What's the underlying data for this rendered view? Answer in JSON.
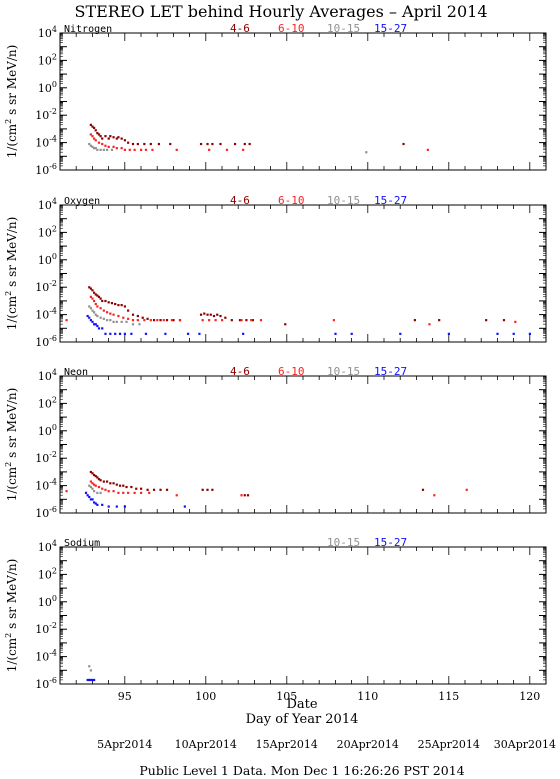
{
  "title": "STEREO LET behind Hourly Averages – April 2014",
  "ylabel_prefix": "1/(cm",
  "ylabel_sup": "2",
  "ylabel_suffix": " s sr MeV/n)",
  "xlabel_top": "Date",
  "xlabel": "Day of Year 2014",
  "xticks": [
    "95",
    "100",
    "105",
    "110",
    "115",
    "120"
  ],
  "date_labels": [
    "5Apr2014",
    "10Apr2014",
    "15Apr2014",
    "20Apr2014",
    "25Apr2014",
    "30Apr2014"
  ],
  "footer": "Public Level 1 Data.  Mon Dec  1 16:26:26 PST 2014",
  "ytick_base": "10",
  "ytick_exps": [
    "4",
    "2",
    "0",
    "-2",
    "-4",
    "-6"
  ],
  "colors": {
    "4-6": "#8b0000",
    "6-10": "#ff2020",
    "10-15": "#909090",
    "15-27": "#1010ff"
  },
  "chart_data": [
    {
      "type": "scatter",
      "name": "Nitrogen",
      "legend": [
        "4-6",
        "6-10",
        "10-15",
        "15-27"
      ],
      "xlim": [
        91,
        121
      ],
      "ylim_log10": [
        -6,
        4
      ],
      "ylog": true,
      "series": [
        {
          "name": "4-6",
          "x": [
            92.9,
            93.0,
            93.1,
            93.2,
            93.3,
            93.4,
            93.5,
            93.6,
            93.8,
            94.0,
            94.1,
            94.3,
            94.5,
            94.6,
            94.8,
            95.0,
            95.2,
            95.5,
            95.8,
            96.2,
            96.6,
            97.1,
            97.8,
            99.7,
            100.1,
            100.4,
            100.9,
            101.8,
            102.4,
            102.7,
            112.2
          ],
          "y": [
            0.002,
            0.0015,
            0.0012,
            0.0008,
            0.0005,
            0.0004,
            0.0003,
            0.0002,
            0.0003,
            0.0002,
            0.0003,
            0.00025,
            0.0002,
            0.00025,
            0.0002,
            0.00015,
            0.0001,
            8e-05,
            8e-05,
            8e-05,
            8e-05,
            8e-05,
            8e-05,
            8e-05,
            8e-05,
            8e-05,
            8e-05,
            8e-05,
            8e-05,
            8e-05,
            8e-05
          ]
        },
        {
          "name": "6-10",
          "x": [
            92.9,
            93.0,
            93.1,
            93.2,
            93.4,
            93.6,
            93.8,
            94.0,
            94.3,
            94.5,
            94.8,
            95.0,
            95.3,
            95.6,
            96.0,
            96.3,
            96.7,
            98.2,
            100.2,
            101.3,
            102.3,
            113.7
          ],
          "y": [
            0.0004,
            0.0003,
            0.0002,
            0.00015,
            0.0001,
            8e-05,
            6e-05,
            5e-05,
            5e-05,
            4e-05,
            4e-05,
            3e-05,
            3e-05,
            3e-05,
            3e-05,
            3e-05,
            3e-05,
            3e-05,
            3e-05,
            3e-05,
            3e-05,
            3e-05
          ]
        },
        {
          "name": "10-15",
          "x": [
            92.8,
            92.9,
            93.0,
            93.1,
            93.2,
            93.3,
            93.5,
            93.7,
            93.9,
            94.2,
            109.9
          ],
          "y": [
            8e-05,
            6e-05,
            5e-05,
            4e-05,
            4e-05,
            3e-05,
            3e-05,
            3e-05,
            3e-05,
            3e-05,
            2e-05
          ]
        },
        {
          "name": "15-27",
          "x": [],
          "y": []
        }
      ]
    },
    {
      "type": "scatter",
      "name": "Oxygen",
      "legend": [
        "4-6",
        "6-10",
        "10-15",
        "15-27"
      ],
      "xlim": [
        91,
        121
      ],
      "ylim_log10": [
        -6,
        4
      ],
      "ylog": true,
      "series": [
        {
          "name": "4-6",
          "x": [
            92.8,
            92.9,
            93.0,
            93.1,
            93.2,
            93.3,
            93.4,
            93.5,
            93.6,
            93.8,
            94.0,
            94.2,
            94.4,
            94.6,
            94.8,
            95.0,
            95.2,
            95.5,
            95.8,
            96.1,
            96.4,
            96.8,
            97.2,
            97.6,
            98.0,
            98.4,
            99.7,
            99.9,
            100.1,
            100.3,
            100.5,
            100.7,
            100.9,
            101.2,
            101.6,
            102.1,
            102.5,
            102.9,
            104.9,
            112.9,
            114.4,
            117.3,
            118.4
          ],
          "y": [
            0.01,
            0.008,
            0.006,
            0.004,
            0.003,
            0.0025,
            0.002,
            0.0015,
            0.001,
            0.001,
            0.0008,
            0.0007,
            0.0006,
            0.0005,
            0.0005,
            0.0004,
            0.0002,
            0.0001,
            8e-05,
            6e-05,
            5e-05,
            4e-05,
            4e-05,
            4e-05,
            4e-05,
            4e-05,
            0.0001,
            0.00012,
            0.0001,
            0.0001,
            8e-05,
            0.0001,
            8e-05,
            6e-05,
            4e-05,
            4e-05,
            4e-05,
            4e-05,
            2e-05,
            4e-05,
            4e-05,
            4e-05,
            4e-05
          ]
        },
        {
          "name": "6-10",
          "x": [
            91.4,
            92.9,
            93.0,
            93.1,
            93.2,
            93.3,
            93.5,
            93.7,
            93.9,
            94.1,
            94.3,
            94.6,
            94.9,
            95.2,
            95.5,
            95.8,
            96.2,
            96.6,
            97.0,
            97.4,
            97.9,
            98.4,
            99.8,
            100.2,
            100.6,
            101.0,
            102.2,
            102.8,
            103.4,
            107.9,
            113.8,
            119.1
          ],
          "y": [
            4e-05,
            0.002,
            0.0015,
            0.001,
            0.0006,
            0.0004,
            0.0003,
            0.0002,
            0.00015,
            0.00012,
            0.0001,
            8e-05,
            6e-05,
            5e-05,
            4e-05,
            4e-05,
            4e-05,
            4e-05,
            4e-05,
            4e-05,
            4e-05,
            4e-05,
            4e-05,
            4e-05,
            4e-05,
            4e-05,
            4e-05,
            4e-05,
            4e-05,
            4e-05,
            2e-05,
            3e-05
          ]
        },
        {
          "name": "10-15",
          "x": [
            92.8,
            92.9,
            93.0,
            93.1,
            93.2,
            93.3,
            93.5,
            93.7,
            93.9,
            94.1,
            94.3,
            94.5,
            94.8,
            95.1,
            95.5,
            95.9
          ],
          "y": [
            0.0004,
            0.0003,
            0.0002,
            0.00015,
            0.0001,
            8e-05,
            6e-05,
            5e-05,
            4e-05,
            4e-05,
            3e-05,
            3e-05,
            3e-05,
            3e-05,
            2e-05,
            2e-05
          ]
        },
        {
          "name": "15-27",
          "x": [
            92.7,
            92.8,
            92.9,
            93.0,
            93.1,
            93.2,
            93.3,
            93.4,
            93.6,
            93.8,
            94.1,
            94.4,
            94.7,
            95.0,
            95.4,
            96.3,
            97.5,
            98.9,
            99.6,
            102.3,
            108.0,
            109.0,
            112.0,
            115.0,
            118.0,
            119.0,
            120.0
          ],
          "y": [
            8e-05,
            6e-05,
            4e-05,
            3e-05,
            2e-05,
            2e-05,
            1.5e-05,
            1e-05,
            1e-05,
            4e-06,
            4e-06,
            4e-06,
            4e-06,
            4e-06,
            4e-06,
            4e-06,
            4e-06,
            4e-06,
            4e-06,
            4e-06,
            4e-06,
            4e-06,
            4e-06,
            4e-06,
            4e-06,
            4e-06,
            4e-06
          ]
        }
      ]
    },
    {
      "type": "scatter",
      "name": "Neon",
      "legend": [
        "4-6",
        "6-10",
        "10-15",
        "15-27"
      ],
      "xlim": [
        91,
        121
      ],
      "ylim_log10": [
        -6,
        4
      ],
      "ylog": true,
      "series": [
        {
          "name": "4-6",
          "x": [
            92.9,
            93.0,
            93.1,
            93.2,
            93.3,
            93.4,
            93.5,
            93.7,
            93.9,
            94.1,
            94.3,
            94.5,
            94.7,
            94.9,
            95.1,
            95.4,
            95.7,
            96.0,
            96.4,
            96.8,
            97.2,
            97.6,
            99.8,
            100.1,
            100.4,
            102.4,
            102.6,
            113.4
          ],
          "y": [
            0.001,
            0.0008,
            0.0006,
            0.0005,
            0.0004,
            0.0003,
            0.00025,
            0.0002,
            0.0002,
            0.00015,
            0.00015,
            0.00012,
            0.0001,
            0.0001,
            8e-05,
            8e-05,
            6e-05,
            6e-05,
            5e-05,
            5e-05,
            5e-05,
            5e-05,
            5e-05,
            5e-05,
            5e-05,
            2e-05,
            2e-05,
            5e-05
          ]
        },
        {
          "name": "6-10",
          "x": [
            91.4,
            92.9,
            93.0,
            93.1,
            93.2,
            93.4,
            93.6,
            93.8,
            94.0,
            94.3,
            94.6,
            94.9,
            95.2,
            95.6,
            96.0,
            96.5,
            98.2,
            102.2,
            114.1,
            116.1
          ],
          "y": [
            4e-05,
            0.0002,
            0.00015,
            0.00012,
            0.0001,
            8e-05,
            6e-05,
            5e-05,
            4e-05,
            4e-05,
            3e-05,
            3e-05,
            3e-05,
            3e-05,
            3e-05,
            3e-05,
            2e-05,
            2e-05,
            2e-05,
            5e-05
          ]
        },
        {
          "name": "10-15",
          "x": [
            92.8,
            92.9,
            93.0,
            93.1,
            93.3,
            93.5
          ],
          "y": [
            0.0001,
            8e-05,
            6e-05,
            4e-05,
            3e-05,
            3e-05
          ]
        },
        {
          "name": "15-27",
          "x": [
            92.6,
            92.7,
            92.8,
            92.9,
            93.0,
            93.1,
            93.2,
            93.3,
            93.6,
            94.0,
            94.5,
            95.0,
            98.7
          ],
          "y": [
            3e-05,
            2e-05,
            1.5e-05,
            1e-05,
            1e-05,
            6e-06,
            5e-06,
            4e-06,
            4e-06,
            3e-06,
            3e-06,
            3e-06,
            3e-06
          ]
        }
      ]
    },
    {
      "type": "scatter",
      "name": "Sodium",
      "legend": [
        "10-15",
        "15-27"
      ],
      "xlim": [
        91,
        121
      ],
      "ylim_log10": [
        -6,
        4
      ],
      "ylog": true,
      "series": [
        {
          "name": "10-15",
          "x": [
            92.8,
            92.9
          ],
          "y": [
            2e-05,
            1e-05
          ]
        },
        {
          "name": "15-27",
          "x": [
            92.7,
            92.8,
            92.9,
            93.0,
            93.1
          ],
          "y": [
            2e-06,
            2e-06,
            2e-06,
            2e-06,
            2e-06
          ]
        }
      ]
    }
  ]
}
